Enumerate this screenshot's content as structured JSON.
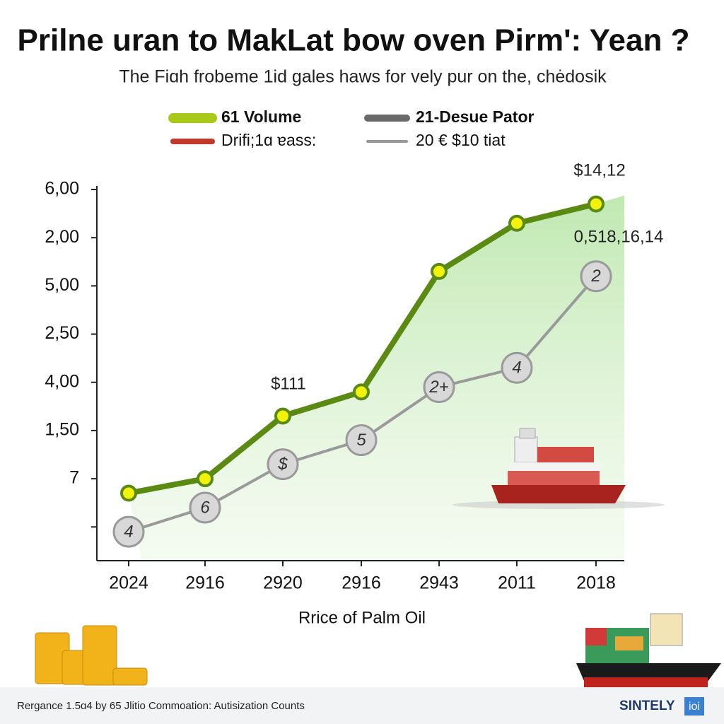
{
  "chart_data": {
    "type": "line",
    "title": "Prilne uran to MakLat bow oven Pirm': Yean ?",
    "subtitle": "The Fiɑh frobeme 1id gales haws for vely pur on the, chėdosik",
    "x_label": "Rrice of Palm Oil",
    "categories": [
      "2024",
      "2916",
      "2920",
      "2916",
      "2943",
      "2011",
      "2018"
    ],
    "ylim": [
      -0.7,
      7
    ],
    "yticks": [
      {
        "value": 0,
        "label": null
      },
      {
        "value": 1,
        "label": "7"
      },
      {
        "value": 2,
        "label": "1,50"
      },
      {
        "value": 3,
        "label": "4,00"
      },
      {
        "value": 4,
        "label": "2,50"
      },
      {
        "value": 5,
        "label": "5,00"
      },
      {
        "value": 6,
        "label": "2,00"
      },
      {
        "value": 7,
        "label": "6,00"
      }
    ],
    "series": [
      {
        "name": "61 Volume",
        "color": "#5a8a12",
        "values": [
          0.7,
          1.0,
          2.3,
          2.8,
          5.3,
          6.3,
          6.7
        ]
      },
      {
        "name": "20 € $10 tiat",
        "color": "#9a9a9a",
        "values": [
          -0.1,
          0.4,
          1.3,
          1.8,
          2.9,
          3.3,
          5.2
        ],
        "point_labels": [
          "4",
          "6",
          "$",
          "5",
          "2+",
          "4",
          "2"
        ]
      }
    ],
    "legend_extra": [
      {
        "name": "21-Desue Pator",
        "color": "#6a6a6a"
      },
      {
        "name": "Drifi;1ɑ ɐass:",
        "color": "#c0392b"
      }
    ],
    "annotations": [
      "$111",
      "$14,12",
      "0,518,16,14"
    ],
    "footer": "Rergance 1.5ɑ4 by 65 Jlitio Commoation: Autisization Counts",
    "brand": "SINTELY",
    "brand_badge": "ioi"
  }
}
